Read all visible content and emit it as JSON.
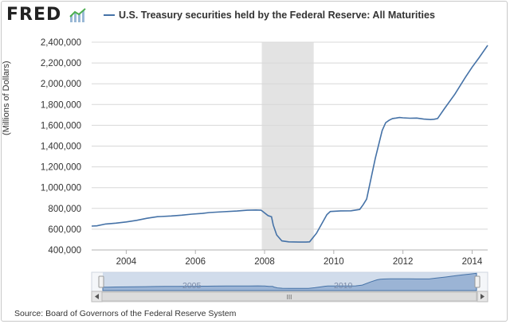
{
  "brand": {
    "name": "FRED"
  },
  "legend": {
    "label": "U.S. Treasury securities held by the Federal Reserve: All Maturities"
  },
  "source": "Source: Board of Governors of the Federal Reserve System",
  "colors": {
    "series": "#4572a7",
    "recession": "#e3e3e3",
    "grid": "#d8d8d8"
  },
  "navigator": {
    "labels": [
      "2005",
      "2010"
    ],
    "grip": "III"
  },
  "chart_data": {
    "type": "line",
    "title": "U.S. Treasury securities held by the Federal Reserve: All Maturities",
    "xlabel": "",
    "ylabel": "(Millions of Dollars)",
    "xlim": [
      2003.0,
      2014.45
    ],
    "ylim": [
      400000,
      2400000
    ],
    "yticks": [
      400000,
      600000,
      800000,
      1000000,
      1200000,
      1400000,
      1600000,
      1800000,
      2000000,
      2200000,
      2400000
    ],
    "ytick_labels": [
      "400,000",
      "600,000",
      "800,000",
      "1,000,000",
      "1,200,000",
      "1,400,000",
      "1,600,000",
      "1,800,000",
      "2,000,000",
      "2,200,000",
      "2,400,000"
    ],
    "xticks": [
      2004,
      2006,
      2008,
      2010,
      2012,
      2014
    ],
    "xtick_labels": [
      "2004",
      "2006",
      "2008",
      "2010",
      "2012",
      "2014"
    ],
    "recessions": [
      [
        2007.92,
        2009.42
      ]
    ],
    "series": [
      {
        "name": "U.S. Treasury securities held by the Federal Reserve: All Maturities",
        "x": [
          2003.0,
          2003.15,
          2003.4,
          2003.7,
          2004.0,
          2004.3,
          2004.6,
          2004.9,
          2005.0,
          2005.3,
          2005.6,
          2005.9,
          2006.2,
          2006.4,
          2006.8,
          2007.2,
          2007.5,
          2007.75,
          2007.9,
          2007.95,
          2008.1,
          2008.2,
          2008.25,
          2008.35,
          2008.5,
          2008.7,
          2009.0,
          2009.2,
          2009.3,
          2009.5,
          2009.7,
          2009.8,
          2009.9,
          2010.2,
          2010.5,
          2010.75,
          2010.85,
          2010.95,
          2011.2,
          2011.4,
          2011.5,
          2011.6,
          2011.7,
          2011.8,
          2011.9,
          2012.0,
          2012.2,
          2012.4,
          2012.6,
          2012.8,
          2012.9,
          2013.0,
          2013.2,
          2013.5,
          2013.8,
          2014.0,
          2014.2,
          2014.45
        ],
        "values": [
          630000,
          632000,
          650000,
          658000,
          670000,
          685000,
          705000,
          720000,
          722000,
          727000,
          735000,
          745000,
          752000,
          760000,
          768000,
          775000,
          782000,
          785000,
          782000,
          770000,
          730000,
          720000,
          640000,
          545000,
          487000,
          478000,
          476000,
          476000,
          478000,
          560000,
          680000,
          740000,
          770000,
          776000,
          777000,
          790000,
          835000,
          890000,
          1280000,
          1550000,
          1625000,
          1648000,
          1665000,
          1670000,
          1675000,
          1672000,
          1668000,
          1670000,
          1660000,
          1655000,
          1658000,
          1665000,
          1760000,
          1900000,
          2060000,
          2160000,
          2250000,
          2370000
        ]
      }
    ]
  }
}
